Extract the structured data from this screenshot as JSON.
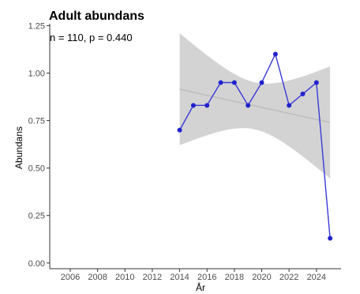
{
  "chart_data": {
    "type": "line",
    "title": "Adult abundans",
    "annotation": "n = 110, p = 0.440",
    "xlabel": "År",
    "ylabel": "Abundans",
    "xlim": [
      2004.5,
      2025.8
    ],
    "ylim": [
      -0.03,
      1.26
    ],
    "xticks": [
      2006,
      2008,
      2010,
      2012,
      2014,
      2016,
      2018,
      2020,
      2022,
      2024
    ],
    "xtick_labels": [
      "2006",
      "2008",
      "2010",
      "2012",
      "2014",
      "2016",
      "2018",
      "2020",
      "2022",
      "2024"
    ],
    "yticks": [
      0.0,
      0.25,
      0.5,
      0.75,
      1.0,
      1.25
    ],
    "ytick_labels": [
      "0.00",
      "0.25",
      "0.50",
      "0.75",
      "1.00",
      "1.25"
    ],
    "grid": false,
    "series": [
      {
        "x": [
          2014,
          2015,
          2016,
          2017,
          2018,
          2019,
          2020,
          2021,
          2022,
          2023,
          2024,
          2025
        ],
        "y": [
          0.7,
          0.83,
          0.83,
          0.95,
          0.95,
          0.83,
          0.95,
          1.1,
          0.83,
          0.89,
          0.95,
          0.13
        ]
      }
    ],
    "trend": {
      "x": [
        2014,
        2025
      ],
      "y": [
        0.915,
        0.74
      ],
      "ci_lower": [
        0.625,
        0.45
      ],
      "ci_upper": [
        1.215,
        1.03
      ]
    },
    "colors": {
      "line": "#3a3ad6",
      "marker": "#2222cc",
      "trend": "#bdbdbd",
      "ribbon": "#d3d3d3",
      "axis": "#333333"
    }
  }
}
